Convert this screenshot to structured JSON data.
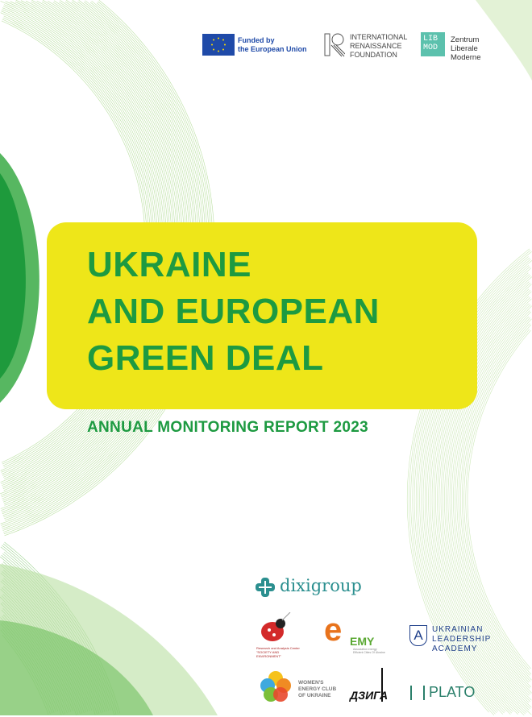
{
  "sponsors": {
    "eu_line1": "Funded by",
    "eu_line2": "the European Union",
    "irf": [
      "INTERNATIONAL",
      "RENAISSANCE",
      "FOUNDATION"
    ],
    "libmod_mark": [
      "LIB",
      "MOD"
    ],
    "libmod": [
      "Zentrum",
      "Liberale",
      "Moderne"
    ]
  },
  "title_lines": [
    "UKRAINE",
    "AND EUROPEAN",
    "GREEN DEAL"
  ],
  "subtitle": "ANNUAL MONITORING REPORT 2023",
  "partners": {
    "dixigroup": "dixigroup",
    "society_env": "Research and Analysis Center \"SOCIETY AND ENVIRONMENT\"",
    "emu": "EMY",
    "emu_caption": "Association energy Efficient Cities Of Ukraine",
    "ula": [
      "UKRAINIAN",
      "LEADERSHIP",
      "ACADEMY"
    ],
    "ula_mark": "A",
    "wecu": [
      "WOMEN'S",
      "ENERGY CLUB",
      "OF UKRAINE"
    ],
    "dzyga": "ДЗИГА",
    "plato": "PLATO"
  },
  "colors": {
    "green": "#1d9a41",
    "yellow": "#eee619",
    "eu_blue": "#1f4aa8",
    "teal": "#2b8f8f"
  }
}
